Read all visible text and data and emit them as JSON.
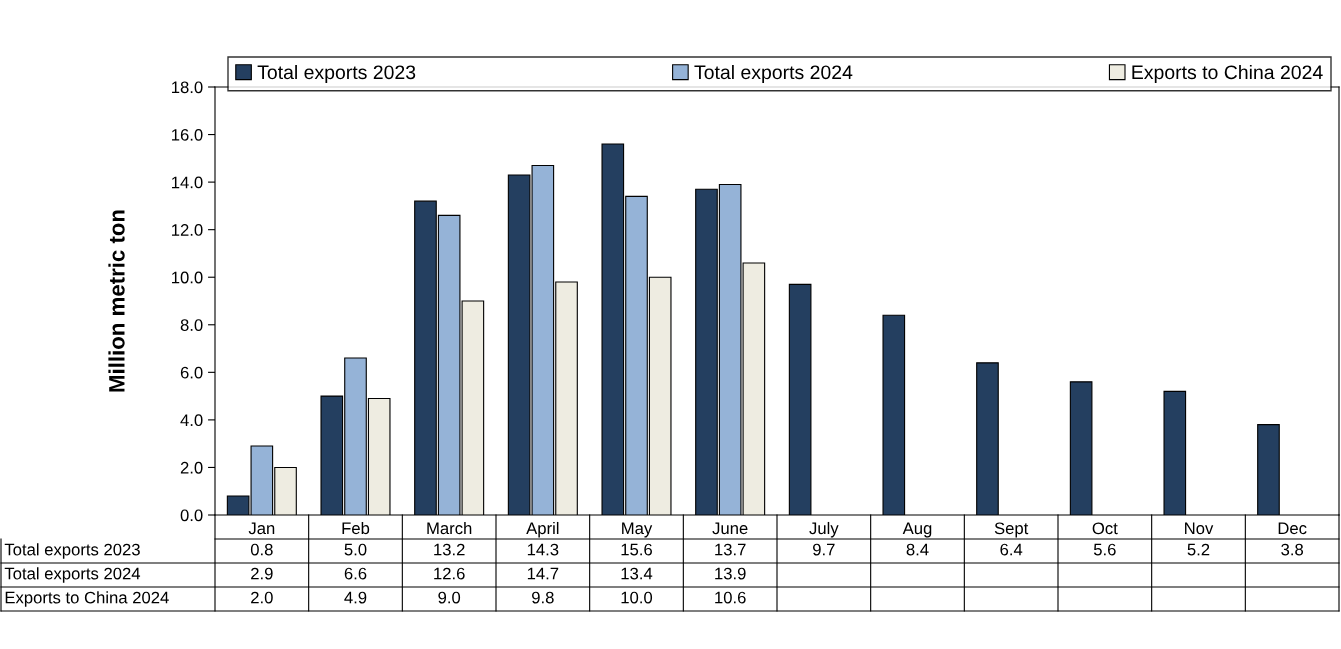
{
  "chart_data": {
    "type": "bar",
    "ylabel": "Million metric ton",
    "categories": [
      "Jan",
      "Feb",
      "March",
      "April",
      "May",
      "June",
      "July",
      "Aug",
      "Sept",
      "Oct",
      "Nov",
      "Dec"
    ],
    "series": [
      {
        "name": "Total exports 2023",
        "color": "#243f60",
        "values": [
          0.8,
          5.0,
          13.2,
          14.3,
          15.6,
          13.7,
          9.7,
          8.4,
          6.4,
          5.6,
          5.2,
          3.8
        ],
        "value_labels": [
          "0.8",
          "5.0",
          "13.2",
          "14.3",
          "15.6",
          "13.7",
          "9.7",
          "8.4",
          "6.4",
          "5.6",
          "5.2",
          "3.8"
        ]
      },
      {
        "name": "Total exports 2024",
        "color": "#95b3d7",
        "values": [
          2.9,
          6.6,
          12.6,
          14.7,
          13.4,
          13.9,
          null,
          null,
          null,
          null,
          null,
          null
        ],
        "value_labels": [
          "2.9",
          "6.6",
          "12.6",
          "14.7",
          "13.4",
          "13.9",
          null,
          null,
          null,
          null,
          null,
          null
        ]
      },
      {
        "name": "Exports to China 2024",
        "color": "#eeece1",
        "values": [
          2.0,
          4.9,
          9.0,
          9.8,
          10.0,
          10.6,
          null,
          null,
          null,
          null,
          null,
          null
        ],
        "value_labels": [
          "2.0",
          "4.9",
          "9.0",
          "9.8",
          "10.0",
          "10.6",
          null,
          null,
          null,
          null,
          null,
          null
        ]
      }
    ],
    "ylim": [
      0,
      18
    ],
    "yticks": [
      {
        "value": 0,
        "label": "0.0"
      },
      {
        "value": 2,
        "label": "2.0"
      },
      {
        "value": 4,
        "label": "4.0"
      },
      {
        "value": 6,
        "label": "6.0"
      },
      {
        "value": 8,
        "label": "8.0"
      },
      {
        "value": 10,
        "label": "10.0"
      },
      {
        "value": 12,
        "label": "12.0"
      },
      {
        "value": 14,
        "label": "14.0"
      },
      {
        "value": 16,
        "label": "16.0"
      },
      {
        "value": 18,
        "label": "18.0"
      }
    ],
    "legend": "top",
    "grid": false
  }
}
